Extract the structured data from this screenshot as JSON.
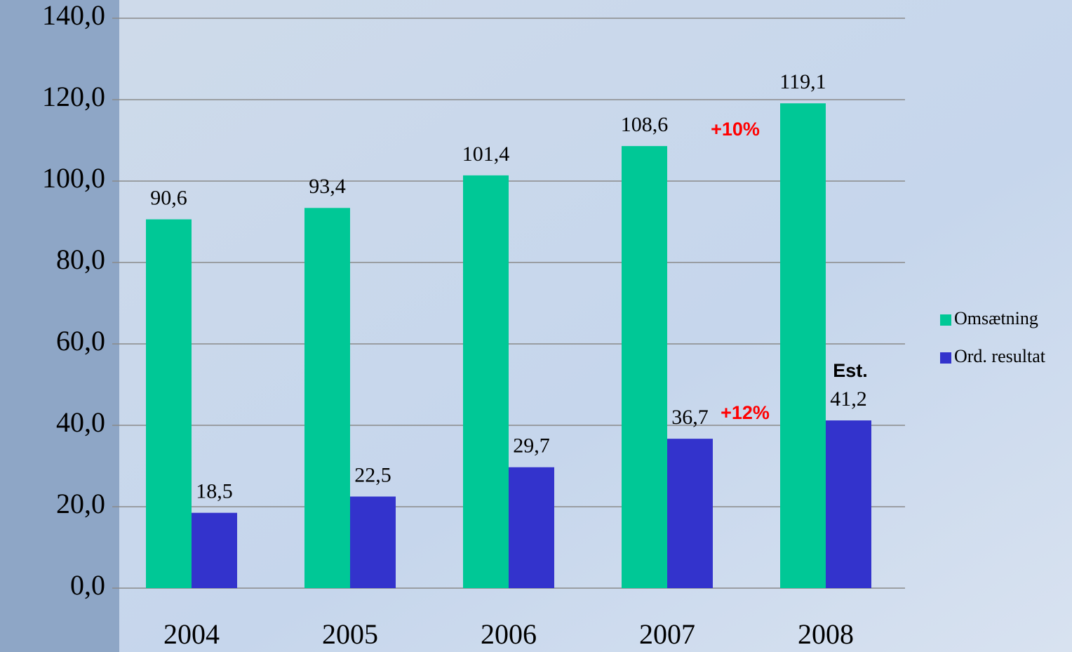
{
  "chart_data": {
    "type": "bar",
    "categories": [
      "2004",
      "2005",
      "2006",
      "2007",
      "2008"
    ],
    "series": [
      {
        "name": "Omsætning",
        "color": "#00c896",
        "values": [
          90.6,
          93.4,
          101.4,
          108.6,
          119.1
        ],
        "value_labels": [
          "90,6",
          "93,4",
          "101,4",
          "108,6",
          "119,1"
        ]
      },
      {
        "name": "Ord. resultat",
        "color": "#3333cc",
        "values": [
          18.5,
          22.5,
          29.7,
          36.7,
          41.2
        ],
        "value_labels": [
          "18,5",
          "22,5",
          "29,7",
          "36,7",
          "41,2"
        ]
      }
    ],
    "ylim": [
      0,
      140
    ],
    "yticks": [
      {
        "value": 0,
        "label": "0,0"
      },
      {
        "value": 20,
        "label": "20,0"
      },
      {
        "value": 40,
        "label": "40,0"
      },
      {
        "value": 60,
        "label": "60,0"
      },
      {
        "value": 80,
        "label": "80,0"
      },
      {
        "value": 100,
        "label": "100,0"
      },
      {
        "value": 120,
        "label": "120,0"
      },
      {
        "value": 140,
        "label": "140,0"
      }
    ],
    "grid": true,
    "legend": "right",
    "annotations": [
      {
        "text": "+10%",
        "color": "#ff0000"
      },
      {
        "text": "+12%",
        "color": "#ff0000"
      },
      {
        "text": "Est.",
        "color": "#000000"
      }
    ]
  }
}
